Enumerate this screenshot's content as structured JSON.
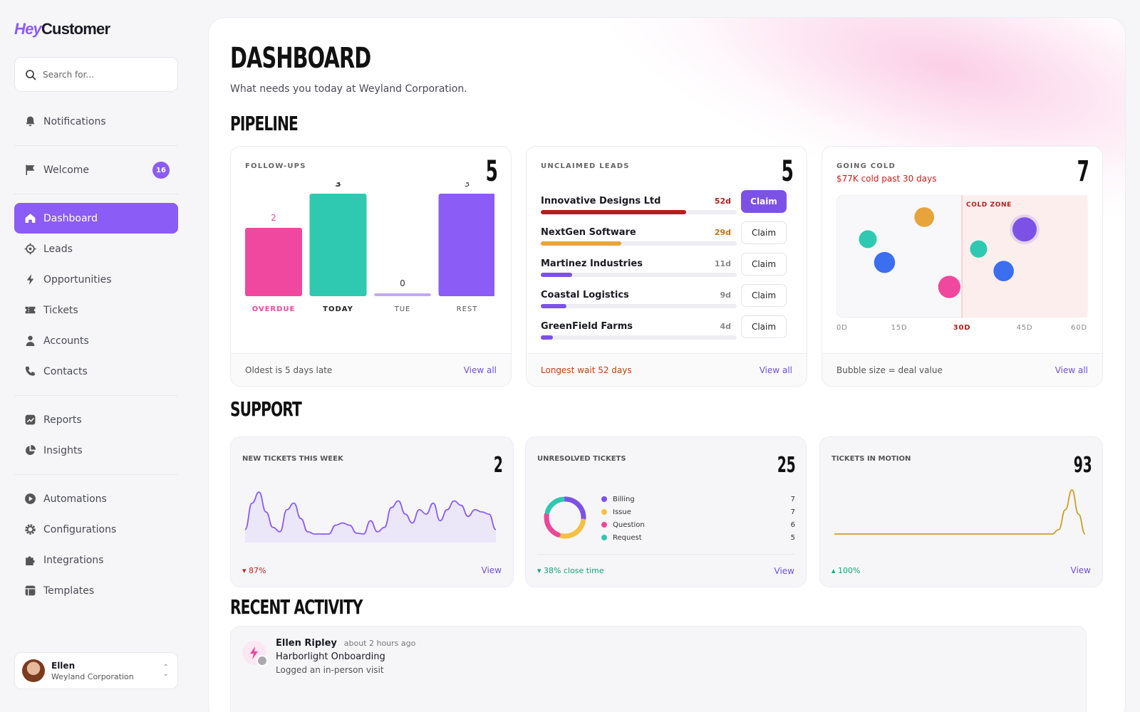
{
  "brand": {
    "logo_hey": "Hey",
    "logo_rest": "Customer"
  },
  "search": {
    "placeholder": "Search for..."
  },
  "sidebar": {
    "items": [
      {
        "label": "Notifications",
        "icon": "bell-icon"
      },
      {
        "label": "Welcome",
        "icon": "flag-icon",
        "badge": "16"
      },
      {
        "label": "Dashboard",
        "icon": "home-icon",
        "active": true
      },
      {
        "label": "Leads",
        "icon": "target-icon"
      },
      {
        "label": "Opportunities",
        "icon": "bolt-icon"
      },
      {
        "label": "Tickets",
        "icon": "ticket-icon"
      },
      {
        "label": "Accounts",
        "icon": "person-icon"
      },
      {
        "label": "Contacts",
        "icon": "phone-icon"
      },
      {
        "label": "Reports",
        "icon": "chart-icon"
      },
      {
        "label": "Insights",
        "icon": "pie-icon"
      },
      {
        "label": "Automations",
        "icon": "play-icon"
      },
      {
        "label": "Configurations",
        "icon": "gear-icon"
      },
      {
        "label": "Integrations",
        "icon": "puzzle-icon"
      },
      {
        "label": "Templates",
        "icon": "template-icon"
      }
    ]
  },
  "user": {
    "name": "Ellen",
    "org": "Weyland Corporation"
  },
  "header": {
    "title": "DASHBOARD",
    "subtitle": "What needs you today at Weyland Corporation."
  },
  "pipeline": {
    "title": "PIPELINE",
    "followups": {
      "title": "FOLLOW-UPS",
      "count": "5",
      "footer": "Oldest is 5 days late",
      "link": "View all"
    },
    "unclaimed": {
      "title": "UNCLAIMED LEADS",
      "count": "5",
      "leads": [
        {
          "name": "Innovative Designs Ltd",
          "days": "52d",
          "progress": 0.74,
          "color": "#b91c1c",
          "daycolor": "#b91c1c",
          "action": "Claim"
        },
        {
          "name": "NextGen Software",
          "days": "29d",
          "progress": 0.41,
          "color": "#e8a33a",
          "daycolor": "#c2710c",
          "action": "Claim"
        },
        {
          "name": "Martinez Industries",
          "days": "11d",
          "progress": 0.16,
          "color": "#7c52e6",
          "daycolor": "#888888",
          "action": "Claim"
        },
        {
          "name": "Coastal Logistics",
          "days": "9d",
          "progress": 0.13,
          "color": "#7c52e6",
          "daycolor": "#888888",
          "action": "Claim"
        },
        {
          "name": "GreenField Farms",
          "days": "4d",
          "progress": 0.06,
          "color": "#7c52e6",
          "daycolor": "#888888",
          "action": "Claim"
        }
      ],
      "footer": "Longest wait 52 days",
      "link": "View all"
    },
    "cold": {
      "title": "GOING COLD",
      "count": "7",
      "subtitle": "$77K cold past 30 days",
      "zone_label": "COLD ZONE",
      "footer": "Bubble size = deal value",
      "link": "View all"
    }
  },
  "support": {
    "title": "SUPPORT",
    "new_tickets": {
      "title": "NEW TICKETS THIS WEEK",
      "count": "2",
      "change": "87%",
      "link": "View"
    },
    "unresolved": {
      "title": "UNRESOLVED TICKETS",
      "count": "25",
      "categories": [
        {
          "label": "Billing",
          "value": "7",
          "color": "#7c52e6"
        },
        {
          "label": "Issue",
          "value": "7",
          "color": "#f5c043"
        },
        {
          "label": "Question",
          "value": "6",
          "color": "#ec4899"
        },
        {
          "label": "Request",
          "value": "5",
          "color": "#2fc7b0"
        }
      ],
      "footer": "38% close time",
      "link": "View"
    },
    "motion": {
      "title": "TICKETS IN MOTION",
      "count": "93",
      "change": "100%",
      "link": "View"
    }
  },
  "activity": {
    "title": "RECENT ACTIVITY",
    "items": [
      {
        "user": "Ellen Ripley",
        "time": "about 2 hours ago",
        "subject": "Harborlight Onboarding",
        "detail": "Logged an in-person visit"
      }
    ]
  },
  "chart_data": [
    {
      "type": "bar",
      "title": "FOLLOW-UPS",
      "categories": [
        "OVERDUE",
        "TODAY",
        "TUE",
        "REST"
      ],
      "values": [
        2,
        3,
        0,
        3
      ],
      "colors": [
        "#f0479f",
        "#2ec9b0",
        "#c4a9f5",
        "#8b5cf6"
      ],
      "ylim": [
        0,
        3
      ]
    },
    {
      "type": "scatter",
      "title": "GOING COLD",
      "x_ticks": [
        "0D",
        "15D",
        "30D",
        "45D",
        "60D"
      ],
      "xlim": [
        0,
        60
      ],
      "ylim": [
        0,
        1
      ],
      "points": [
        {
          "x": 7.5,
          "y": 0.64,
          "size": 0.5,
          "color": "#2ec9b0"
        },
        {
          "x": 11.5,
          "y": 0.45,
          "size": 0.75,
          "color": "#3b6ff0"
        },
        {
          "x": 21,
          "y": 0.82,
          "size": 0.65,
          "color": "#e8a33a"
        },
        {
          "x": 27,
          "y": 0.25,
          "size": 0.85,
          "color": "#f0479f"
        },
        {
          "x": 34,
          "y": 0.56,
          "size": 0.45,
          "color": "#2ec9b0"
        },
        {
          "x": 40,
          "y": 0.38,
          "size": 0.7,
          "color": "#3b6ff0"
        },
        {
          "x": 45,
          "y": 0.72,
          "size": 1.0,
          "color": "#7c52e6"
        }
      ]
    },
    {
      "type": "area",
      "title": "NEW TICKETS THIS WEEK",
      "values": [
        0.1,
        0.7,
        0.95,
        0.5,
        0.15,
        0.05,
        0.55,
        0.7,
        0.35,
        0.05,
        0.0,
        0.0,
        0.0,
        0.2,
        0.25,
        0.2,
        0.02,
        0.0,
        0.3,
        0.05,
        0.15,
        0.6,
        0.75,
        0.45,
        0.25,
        0.55,
        0.45,
        0.7,
        0.3,
        0.55,
        0.75,
        0.65,
        0.4,
        0.55,
        0.5,
        0.45,
        0.1
      ],
      "ylim": [
        0,
        1
      ]
    },
    {
      "type": "pie",
      "title": "UNRESOLVED TICKETS",
      "categories": [
        "Billing",
        "Issue",
        "Question",
        "Request"
      ],
      "values": [
        7,
        7,
        6,
        5
      ]
    },
    {
      "type": "line",
      "title": "TICKETS IN MOTION",
      "values": [
        0,
        0,
        0,
        0,
        0,
        0,
        0,
        0,
        0,
        0,
        0,
        0,
        0,
        0,
        0,
        0,
        0,
        0,
        0,
        0,
        0,
        0,
        0,
        0,
        0,
        0,
        0,
        0,
        0,
        0,
        0,
        0,
        0,
        0,
        0.1,
        0.55,
        1.0,
        0.45,
        0
      ],
      "ylim": [
        0,
        1
      ]
    }
  ]
}
